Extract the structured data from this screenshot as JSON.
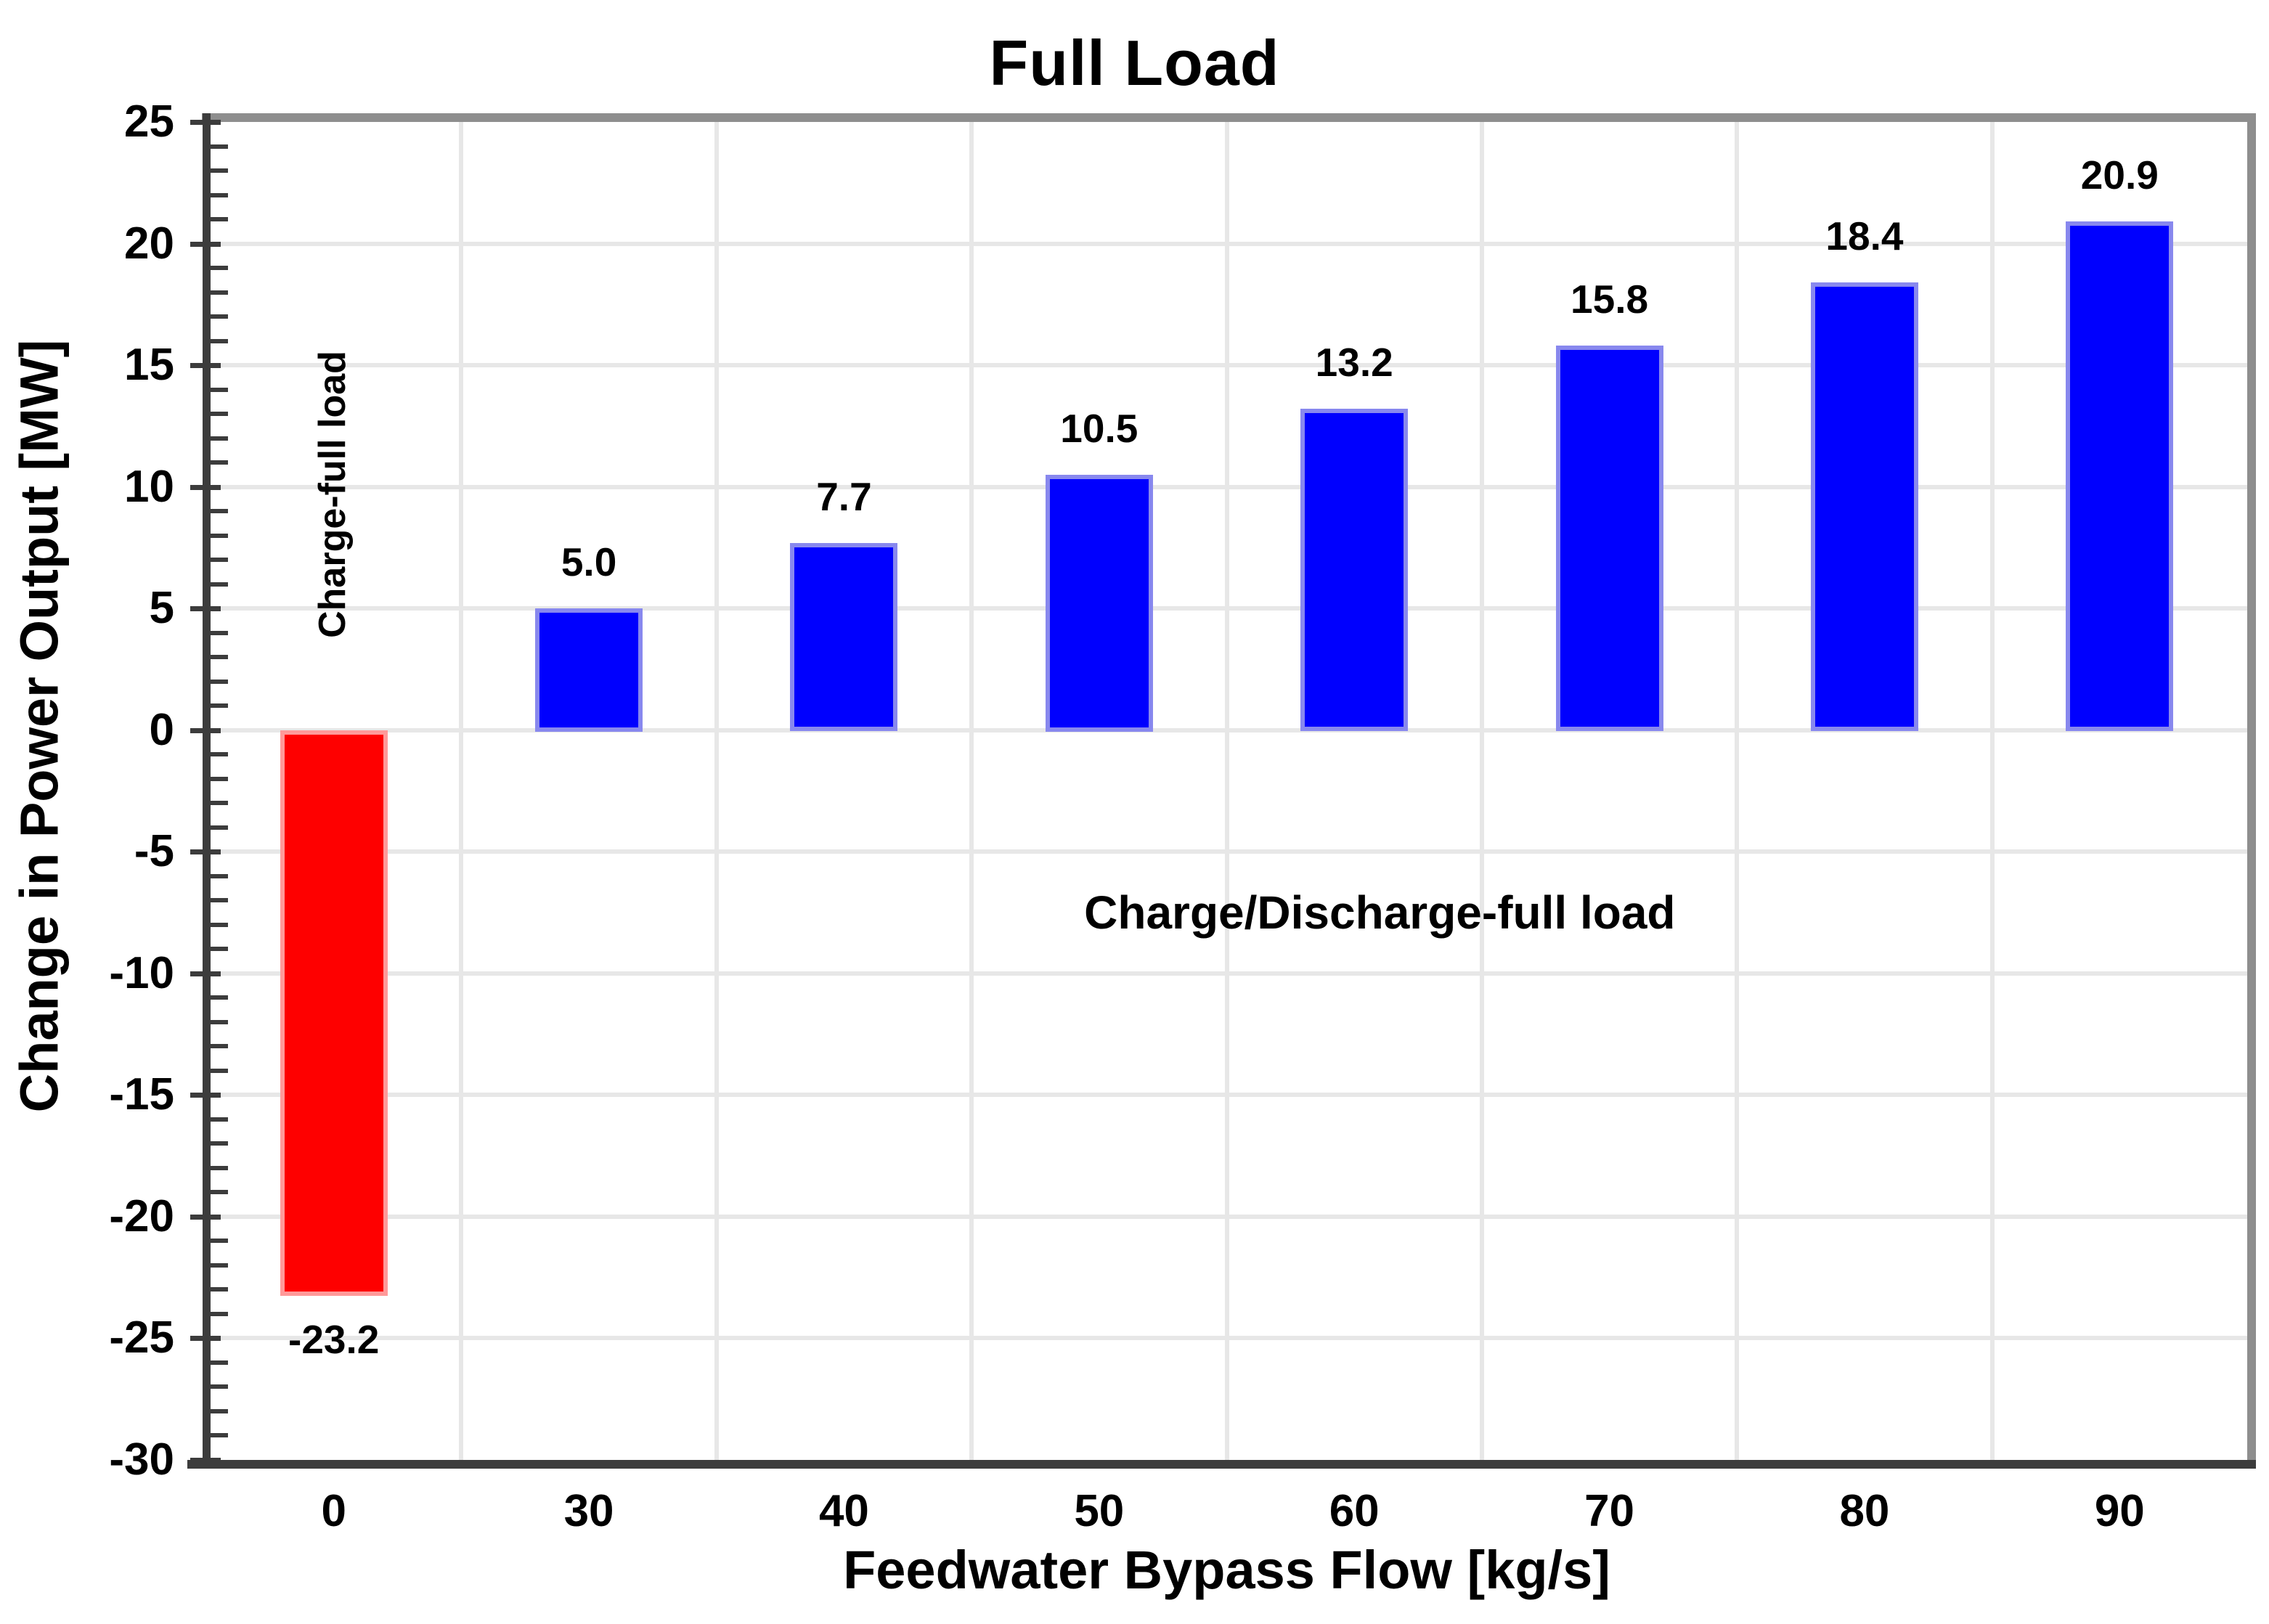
{
  "chart_data": {
    "type": "bar",
    "title": "Full Load",
    "xlabel": "Feedwater Bypass Flow [kg/s]",
    "ylabel": "Change in Power Output [MW]",
    "categories": [
      "0",
      "30",
      "40",
      "50",
      "60",
      "70",
      "80",
      "90"
    ],
    "values": [
      -23.2,
      5.0,
      7.7,
      10.5,
      13.2,
      15.8,
      18.4,
      20.9
    ],
    "bar_labels": [
      "-23.2",
      "5.0",
      "7.7",
      "10.5",
      "13.2",
      "15.8",
      "18.4",
      "20.9"
    ],
    "ylim": [
      -30,
      25
    ],
    "y_major_tick_step": 5,
    "y_minor_tick_step": 1,
    "y_tick_labels": [
      "25",
      "20",
      "15",
      "10",
      "5",
      "0",
      "-5",
      "-10",
      "-15",
      "-20",
      "-25",
      "-30"
    ],
    "grid": true,
    "legend": "none",
    "annotations": [
      {
        "text": "Charge-full load",
        "rotation_deg": -90,
        "slot_x": 0.495,
        "mw_y": 9.7
      },
      {
        "text": "Charge/Discharge-full load",
        "rotation_deg": 0,
        "slot_x": 4.6,
        "mw_y": -7.5
      }
    ],
    "colors": {
      "positive_bar": "#0000fe",
      "positive_bar_border": "#8888ee",
      "negative_bar": "#fe0000",
      "negative_bar_border": "#ff9999",
      "grid": "#e7e7e7",
      "axis": "#3c3c3c",
      "frame": "#8e8e8e",
      "text": "#000000",
      "background": "#ffffff"
    }
  }
}
